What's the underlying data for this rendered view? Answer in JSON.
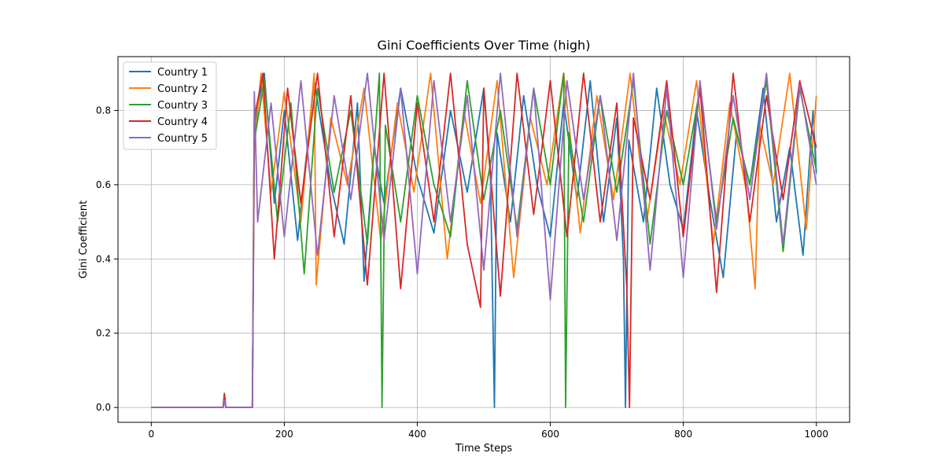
{
  "chart_data": {
    "type": "line",
    "title": "Gini Coefficients Over Time (high)",
    "xlabel": "Time Steps",
    "ylabel": "Gini Coefficient",
    "xlim": [
      -50,
      1050
    ],
    "ylim": [
      -0.04,
      0.945
    ],
    "xticks": [
      0,
      200,
      400,
      600,
      800,
      1000
    ],
    "xtick_labels": [
      "0",
      "200",
      "400",
      "600",
      "800",
      "1000"
    ],
    "yticks": [
      0.0,
      0.2,
      0.4,
      0.6,
      0.8
    ],
    "ytick_labels": [
      "0.0",
      "0.2",
      "0.4",
      "0.6",
      "0.8"
    ],
    "grid": true,
    "legend_position": "top-left",
    "series": [
      {
        "name": "Country 1",
        "color": "#1f77b4",
        "x": [
          0,
          50,
          100,
          108,
          110,
          112,
          152,
          155,
          170,
          185,
          200,
          220,
          245,
          270,
          290,
          310,
          320,
          335,
          350,
          375,
          400,
          425,
          450,
          475,
          500,
          510,
          516,
          520,
          540,
          560,
          580,
          600,
          620,
          640,
          660,
          680,
          700,
          710,
          713,
          718,
          740,
          760,
          780,
          800,
          820,
          840,
          860,
          880,
          900,
          920,
          940,
          960,
          980,
          995,
          1000
        ],
        "y": [
          0.0,
          0.0,
          0.0,
          0.0,
          0.034,
          0.0,
          0.0,
          0.76,
          0.9,
          0.55,
          0.8,
          0.45,
          0.88,
          0.6,
          0.44,
          0.82,
          0.34,
          0.7,
          0.55,
          0.86,
          0.62,
          0.47,
          0.8,
          0.58,
          0.86,
          0.62,
          0.0,
          0.74,
          0.5,
          0.84,
          0.6,
          0.46,
          0.82,
          0.56,
          0.88,
          0.5,
          0.78,
          0.4,
          0.0,
          0.72,
          0.5,
          0.86,
          0.6,
          0.48,
          0.8,
          0.56,
          0.35,
          0.74,
          0.6,
          0.86,
          0.5,
          0.7,
          0.41,
          0.8,
          0.63
        ]
      },
      {
        "name": "Country 2",
        "color": "#ff7f0e",
        "x": [
          0,
          50,
          100,
          108,
          110,
          112,
          152,
          155,
          165,
          180,
          200,
          225,
          245,
          248,
          270,
          295,
          320,
          345,
          370,
          395,
          420,
          445,
          470,
          495,
          520,
          545,
          570,
          595,
          620,
          645,
          670,
          695,
          720,
          745,
          770,
          795,
          820,
          845,
          870,
          895,
          908,
          915,
          935,
          960,
          985,
          1000
        ],
        "y": [
          0.0,
          0.0,
          0.0,
          0.0,
          0.03,
          0.0,
          0.0,
          0.7,
          0.9,
          0.58,
          0.85,
          0.5,
          0.9,
          0.33,
          0.78,
          0.6,
          0.86,
          0.45,
          0.82,
          0.58,
          0.9,
          0.4,
          0.8,
          0.55,
          0.88,
          0.35,
          0.78,
          0.6,
          0.9,
          0.47,
          0.84,
          0.56,
          0.9,
          0.5,
          0.8,
          0.6,
          0.88,
          0.44,
          0.82,
          0.58,
          0.32,
          0.76,
          0.6,
          0.9,
          0.48,
          0.84
        ]
      },
      {
        "name": "Country 3",
        "color": "#2ca02c",
        "x": [
          0,
          50,
          100,
          108,
          110,
          112,
          152,
          155,
          170,
          190,
          210,
          230,
          250,
          275,
          300,
          325,
          343,
          347,
          352,
          375,
          400,
          425,
          450,
          475,
          500,
          525,
          550,
          575,
          600,
          620,
          623,
          628,
          650,
          675,
          700,
          725,
          750,
          775,
          800,
          825,
          850,
          875,
          900,
          925,
          950,
          975,
          1000
        ],
        "y": [
          0.0,
          0.0,
          0.0,
          0.0,
          0.038,
          0.0,
          0.0,
          0.72,
          0.88,
          0.5,
          0.82,
          0.36,
          0.86,
          0.58,
          0.8,
          0.44,
          0.9,
          0.0,
          0.76,
          0.5,
          0.84,
          0.6,
          0.46,
          0.88,
          0.56,
          0.8,
          0.48,
          0.86,
          0.6,
          0.9,
          0.0,
          0.74,
          0.5,
          0.84,
          0.58,
          0.88,
          0.44,
          0.8,
          0.6,
          0.86,
          0.5,
          0.78,
          0.6,
          0.88,
          0.42,
          0.86,
          0.64
        ]
      },
      {
        "name": "Country 4",
        "color": "#d62728",
        "x": [
          0,
          50,
          100,
          108,
          110,
          112,
          152,
          155,
          168,
          185,
          205,
          225,
          250,
          275,
          300,
          325,
          350,
          375,
          400,
          425,
          450,
          475,
          495,
          500,
          525,
          550,
          575,
          600,
          625,
          650,
          675,
          700,
          715,
          719,
          725,
          750,
          775,
          800,
          825,
          850,
          875,
          900,
          925,
          950,
          975,
          1000
        ],
        "y": [
          0.0,
          0.0,
          0.0,
          0.0,
          0.036,
          0.0,
          0.0,
          0.78,
          0.9,
          0.4,
          0.86,
          0.55,
          0.9,
          0.46,
          0.84,
          0.33,
          0.9,
          0.32,
          0.82,
          0.5,
          0.9,
          0.44,
          0.27,
          0.86,
          0.3,
          0.9,
          0.52,
          0.88,
          0.46,
          0.9,
          0.5,
          0.82,
          0.32,
          0.0,
          0.78,
          0.56,
          0.88,
          0.46,
          0.86,
          0.31,
          0.9,
          0.5,
          0.84,
          0.56,
          0.88,
          0.7
        ]
      },
      {
        "name": "Country 5",
        "color": "#9467bd",
        "x": [
          0,
          50,
          100,
          108,
          110,
          112,
          152,
          155,
          160,
          180,
          200,
          225,
          250,
          275,
          300,
          325,
          350,
          375,
          400,
          425,
          450,
          475,
          500,
          525,
          550,
          575,
          600,
          625,
          650,
          675,
          700,
          725,
          750,
          775,
          800,
          825,
          850,
          875,
          900,
          925,
          950,
          975,
          1000
        ],
        "y": [
          0.0,
          0.0,
          0.0,
          0.0,
          0.02,
          0.0,
          0.0,
          0.85,
          0.5,
          0.82,
          0.46,
          0.88,
          0.41,
          0.84,
          0.56,
          0.9,
          0.45,
          0.86,
          0.36,
          0.88,
          0.5,
          0.84,
          0.37,
          0.9,
          0.46,
          0.86,
          0.29,
          0.88,
          0.56,
          0.84,
          0.45,
          0.9,
          0.37,
          0.86,
          0.35,
          0.88,
          0.48,
          0.84,
          0.56,
          0.9,
          0.44,
          0.87,
          0.6
        ]
      }
    ]
  }
}
